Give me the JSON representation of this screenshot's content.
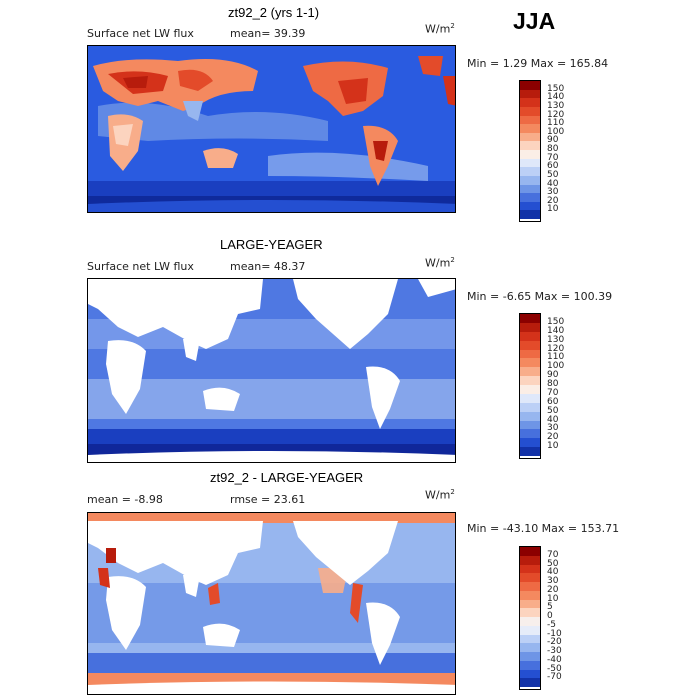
{
  "season": "JJA",
  "units_main": "W/m",
  "units_sup": "2",
  "panels": [
    {
      "title": "zt92_2 (yrs 1-1)",
      "field_label": "Surface net LW flux",
      "stat_text": "mean=  39.39",
      "minmax": "Min =    1.29 Max = 165.84",
      "scale": "seq"
    },
    {
      "title": "LARGE-YEAGER",
      "field_label": "Surface net LW flux",
      "stat_text": "mean=  48.37",
      "minmax": "Min =   -6.65 Max = 100.39",
      "scale": "seq"
    },
    {
      "title": "zt92_2 - LARGE-YEAGER",
      "field_label": "mean =   -8.98",
      "stat_text": "rmse =  23.61",
      "minmax": "Min = -43.10 Max = 153.71",
      "scale": "div"
    }
  ],
  "colorbars": {
    "seq": {
      "labels": [
        "150",
        "140",
        "130",
        "120",
        "110",
        "100",
        "90",
        "80",
        "70",
        "60",
        "50",
        "40",
        "30",
        "20",
        "10"
      ],
      "colors": [
        "#8b0000",
        "#b71c0c",
        "#d4321a",
        "#e34b2a",
        "#ee6a44",
        "#f4895f",
        "#f8ad8a",
        "#fcd4bf",
        "#fbeee6",
        "#dfe8fa",
        "#bcd0f6",
        "#97b6ef",
        "#6e95e6",
        "#4770dd",
        "#244fd1",
        "#1232a8"
      ]
    },
    "div": {
      "labels": [
        "70",
        "50",
        "40",
        "30",
        "20",
        "10",
        "5",
        "0",
        "-5",
        "-10",
        "-20",
        "-30",
        "-40",
        "-50",
        "-70"
      ],
      "colors": [
        "#8b0000",
        "#b71c0c",
        "#d4321a",
        "#e34b2a",
        "#ee6a44",
        "#f4895f",
        "#f8ad8a",
        "#fcd4bf",
        "#f7efec",
        "#e6ecf9",
        "#bcd0f6",
        "#97b6ef",
        "#6e95e6",
        "#4770dd",
        "#244fd1",
        "#1232a8"
      ]
    }
  },
  "map_colors": {
    "ocean_deep": "#1f4fd6",
    "ocean_mid": "#3a66e0",
    "ocean_light": "#7d9fec",
    "ocean_pale": "#bcd0f6",
    "land_white": "#ffffff",
    "warm_strong": "#b71c0c",
    "warm_mid": "#e34b2a",
    "warm_light": "#f4895f",
    "warm_pale": "#fcd4bf"
  }
}
